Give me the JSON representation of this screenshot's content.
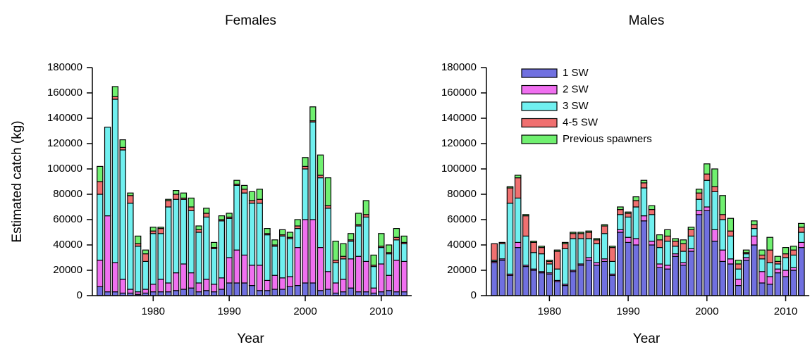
{
  "chart_data": [
    {
      "type": "stacked_bar",
      "title": "Females",
      "xlabel": "Year",
      "ylabel": "Estimated catch (kg)",
      "x": [
        1973,
        1974,
        1975,
        1976,
        1977,
        1978,
        1979,
        1980,
        1981,
        1982,
        1983,
        1984,
        1985,
        1986,
        1987,
        1988,
        1989,
        1990,
        1991,
        1992,
        1993,
        1994,
        1995,
        1996,
        1997,
        1998,
        1999,
        2000,
        2001,
        2002,
        2003,
        2004,
        2005,
        2006,
        2007,
        2008,
        2009,
        2010,
        2011,
        2012,
        2013
      ],
      "series": [
        {
          "color": "#7070e0",
          "values": [
            7000,
            3000,
            3000,
            2000,
            2000,
            1000,
            2000,
            3000,
            3000,
            3000,
            4000,
            5000,
            6000,
            3000,
            4000,
            3000,
            5000,
            10000,
            10000,
            10000,
            8000,
            4000,
            4000,
            5000,
            5000,
            7000,
            8000,
            10000,
            10000,
            4000,
            5000,
            2000,
            3000,
            6000,
            3000,
            3000,
            2000,
            3000,
            4000,
            3000,
            3000
          ]
        },
        {
          "color": "#f070f0",
          "values": [
            21000,
            60000,
            23000,
            11000,
            3000,
            2000,
            3000,
            6000,
            10000,
            7000,
            14000,
            20000,
            12000,
            7000,
            9000,
            6000,
            9000,
            20000,
            26000,
            22000,
            16000,
            20000,
            8000,
            11000,
            9000,
            8000,
            30000,
            50000,
            50000,
            34000,
            14000,
            8000,
            10000,
            23000,
            28000,
            24000,
            4000,
            22000,
            12000,
            25000,
            24000
          ]
        },
        {
          "color": "#70f0f0",
          "values": [
            52000,
            70000,
            129000,
            102000,
            68000,
            36000,
            22000,
            40000,
            36000,
            60000,
            58000,
            51000,
            49000,
            40000,
            49000,
            28000,
            45000,
            31000,
            51000,
            49000,
            49000,
            49000,
            36000,
            23000,
            33000,
            30000,
            15000,
            40000,
            77000,
            55000,
            50000,
            16000,
            16000,
            14000,
            24000,
            35000,
            17000,
            13000,
            17000,
            16000,
            14000
          ]
        },
        {
          "color": "#f07070",
          "values": [
            10000,
            0,
            2000,
            2000,
            6000,
            2000,
            6000,
            2000,
            4000,
            5000,
            4000,
            1000,
            3000,
            2000,
            3000,
            1000,
            1000,
            1000,
            1000,
            3000,
            2000,
            3000,
            1000,
            1000,
            1000,
            1000,
            2000,
            2000,
            1000,
            2000,
            2000,
            2000,
            2000,
            1000,
            1000,
            2000,
            1000,
            1000,
            1000,
            2000,
            1000
          ]
        },
        {
          "color": "#70f070",
          "values": [
            12000,
            0,
            8000,
            6000,
            2000,
            6000,
            3000,
            3000,
            1000,
            1000,
            3000,
            4000,
            7000,
            3000,
            4000,
            4000,
            3000,
            3000,
            3000,
            3000,
            7000,
            8000,
            4000,
            4000,
            4000,
            4000,
            5000,
            7000,
            11000,
            16000,
            22000,
            15000,
            10000,
            5000,
            9000,
            11000,
            8000,
            10000,
            6000,
            7000,
            5000
          ]
        }
      ],
      "xlim": [
        1972,
        2014
      ],
      "ylim": [
        0,
        180000
      ],
      "xticks": [
        1980,
        1990,
        2000,
        2010
      ],
      "yticks": [
        0,
        20000,
        40000,
        60000,
        80000,
        100000,
        120000,
        140000,
        160000,
        180000
      ]
    },
    {
      "type": "stacked_bar",
      "title": "Males",
      "xlabel": "Year",
      "legend": "upper left",
      "x": [
        1973,
        1974,
        1975,
        1976,
        1977,
        1978,
        1979,
        1980,
        1981,
        1982,
        1983,
        1984,
        1985,
        1986,
        1987,
        1988,
        1989,
        1990,
        1991,
        1992,
        1993,
        1994,
        1995,
        1996,
        1997,
        1998,
        1999,
        2000,
        2001,
        2002,
        2003,
        2004,
        2005,
        2006,
        2007,
        2008,
        2009,
        2010,
        2011,
        2012
      ],
      "series": [
        {
          "name": "1 SW",
          "color": "#7070e0",
          "values": [
            26000,
            28000,
            16000,
            38000,
            23000,
            20000,
            18000,
            17000,
            11000,
            8000,
            19000,
            24000,
            28000,
            24000,
            27000,
            16000,
            50000,
            42000,
            40000,
            59000,
            40000,
            22000,
            21000,
            31000,
            24000,
            35000,
            64000,
            67000,
            43000,
            27000,
            25000,
            8000,
            28000,
            40000,
            10000,
            9000,
            18000,
            15000,
            20000,
            38000
          ]
        },
        {
          "name": "2 SW",
          "color": "#f070f0",
          "values": [
            1000,
            1000,
            1000,
            4000,
            1000,
            1000,
            1000,
            1000,
            1000,
            1000,
            1000,
            1000,
            2000,
            2000,
            2000,
            1000,
            2000,
            4000,
            5000,
            4000,
            3000,
            3000,
            3000,
            2000,
            2000,
            2000,
            3000,
            3000,
            9000,
            9000,
            4000,
            5000,
            2000,
            7000,
            9000,
            6000,
            3000,
            5000,
            2000,
            4000
          ]
        },
        {
          "name": "3 SW",
          "color": "#70f0f0",
          "values": [
            1000,
            12000,
            56000,
            35000,
            23000,
            13000,
            14000,
            7000,
            9000,
            28000,
            25000,
            20000,
            15000,
            15000,
            20000,
            10000,
            12000,
            16000,
            25000,
            22000,
            21000,
            13000,
            19000,
            6000,
            9000,
            10000,
            9000,
            21000,
            30000,
            24000,
            18000,
            8000,
            3000,
            6000,
            10000,
            11000,
            4000,
            10000,
            10000,
            8000
          ]
        },
        {
          "name": "4-5 SW",
          "color": "#f07070",
          "values": [
            13000,
            1000,
            12000,
            16000,
            16000,
            8000,
            5000,
            2000,
            14000,
            4000,
            4000,
            4000,
            5000,
            3000,
            6000,
            11000,
            4000,
            3000,
            5000,
            4000,
            4000,
            6000,
            4000,
            4000,
            6000,
            5000,
            5000,
            5000,
            4000,
            4000,
            4000,
            4000,
            1000,
            3000,
            3000,
            10000,
            2000,
            3000,
            4000,
            4000
          ]
        },
        {
          "name": "Previous spawners",
          "color": "#70f070",
          "values": [
            0,
            0,
            1000,
            2000,
            1000,
            1000,
            1000,
            1000,
            1000,
            1000,
            1000,
            1000,
            1000,
            1000,
            1000,
            1000,
            2000,
            1000,
            3000,
            2000,
            3000,
            4000,
            5000,
            2000,
            3000,
            2000,
            3000,
            8000,
            14000,
            15000,
            10000,
            3000,
            2000,
            3000,
            4000,
            10000,
            4000,
            5000,
            3000,
            3000
          ]
        }
      ],
      "xlim": [
        1972,
        2013
      ],
      "ylim": [
        0,
        180000
      ],
      "xticks": [
        1980,
        1990,
        2000,
        2010
      ],
      "yticks": [
        0,
        20000,
        40000,
        60000,
        80000,
        100000,
        120000,
        140000,
        160000,
        180000
      ]
    }
  ]
}
